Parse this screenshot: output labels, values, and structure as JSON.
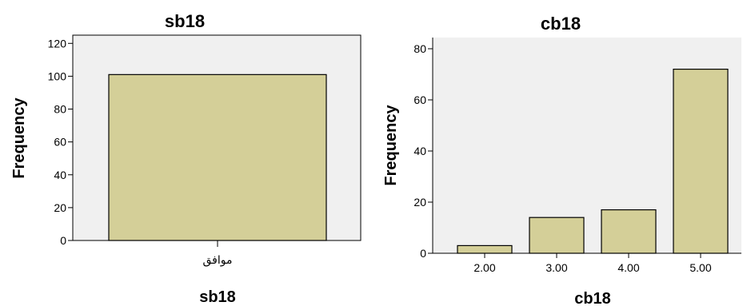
{
  "chart_data": [
    {
      "type": "bar",
      "title": "sb18",
      "xlabel": "sb18",
      "ylabel": "Frequency",
      "categories": [
        "موافق"
      ],
      "values": [
        101
      ],
      "ylim": [
        0,
        125
      ],
      "yticks": [
        0,
        20,
        40,
        60,
        80,
        100,
        120
      ],
      "grid": false,
      "colors": {
        "bar": "#d4cf98",
        "plot_bg": "#f0f0f0",
        "stroke": "#000000"
      }
    },
    {
      "type": "bar",
      "title": "cb18",
      "xlabel": "cb18",
      "ylabel": "Frequency",
      "categories": [
        "2.00",
        "3.00",
        "4.00",
        "5.00"
      ],
      "values": [
        3,
        14,
        17,
        72
      ],
      "ylim": [
        0,
        80
      ],
      "yticks": [
        0,
        20,
        40,
        60,
        80
      ],
      "grid": false,
      "colors": {
        "bar": "#d4cf98",
        "plot_bg": "#f0f0f0",
        "stroke": "#000000"
      }
    }
  ]
}
